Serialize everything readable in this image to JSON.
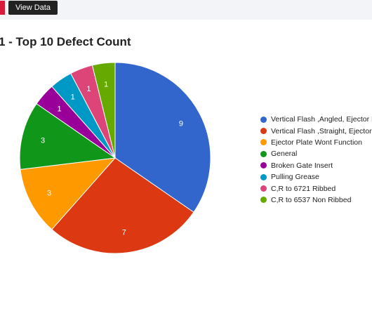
{
  "toolbar": {
    "view_data_label": "View Data"
  },
  "chart_data": {
    "type": "pie",
    "title": "1 - Top 10 Defect Count",
    "categories": [
      "Vertical Flash ,Angled, Ejector B",
      "Vertical Flash ,Straight, Ejector E",
      "Ejector Plate Wont Function",
      "General",
      "Broken Gate Insert",
      "Pulling Grease",
      "C,R to 6721 Ribbed",
      "C,R to 6537 Non Ribbed"
    ],
    "values": [
      9,
      7,
      3,
      3,
      1,
      1,
      1,
      1
    ],
    "colors": [
      "#3366cc",
      "#dc3912",
      "#ff9900",
      "#109618",
      "#990099",
      "#0099c6",
      "#dd4477",
      "#66aa00"
    ],
    "legend_position": "right"
  }
}
